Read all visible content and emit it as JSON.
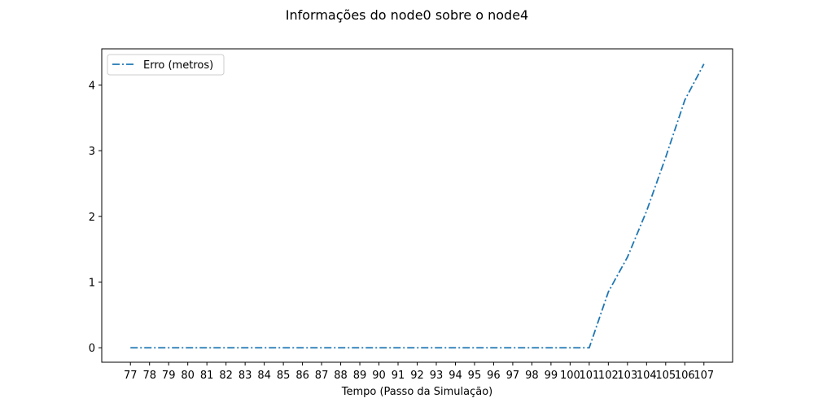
{
  "chart_data": {
    "type": "line",
    "title": "Informações do node0 sobre o node4",
    "xlabel": "Tempo (Passo da Simulação)",
    "ylabel": "",
    "x": [
      77,
      78,
      79,
      80,
      81,
      82,
      83,
      84,
      85,
      86,
      87,
      88,
      89,
      90,
      91,
      92,
      93,
      94,
      95,
      96,
      97,
      98,
      99,
      100,
      101,
      102,
      103,
      104,
      105,
      106,
      107
    ],
    "xticks": [
      "77",
      "78",
      "79",
      "80",
      "81",
      "82",
      "83",
      "84",
      "85",
      "86",
      "87",
      "88",
      "89",
      "90",
      "91",
      "92",
      "93",
      "94",
      "95",
      "96",
      "97",
      "98",
      "99",
      "100",
      "101",
      "102",
      "103",
      "104",
      "105",
      "106",
      "107"
    ],
    "yticks": [
      "0",
      "1",
      "2",
      "3",
      "4"
    ],
    "xlim": [
      75.5,
      108.5
    ],
    "ylim": [
      -0.22,
      4.55
    ],
    "grid": false,
    "legend_position": "top-left",
    "series": [
      {
        "name": "Erro (metros)",
        "color": "#1f77b4",
        "linestyle": "dashdot",
        "values": [
          0,
          0,
          0,
          0,
          0,
          0,
          0,
          0,
          0,
          0,
          0,
          0,
          0,
          0,
          0,
          0,
          0,
          0,
          0,
          0,
          0,
          0,
          0,
          0,
          0,
          0.85,
          1.38,
          2.08,
          2.9,
          3.77,
          4.32
        ]
      }
    ]
  }
}
